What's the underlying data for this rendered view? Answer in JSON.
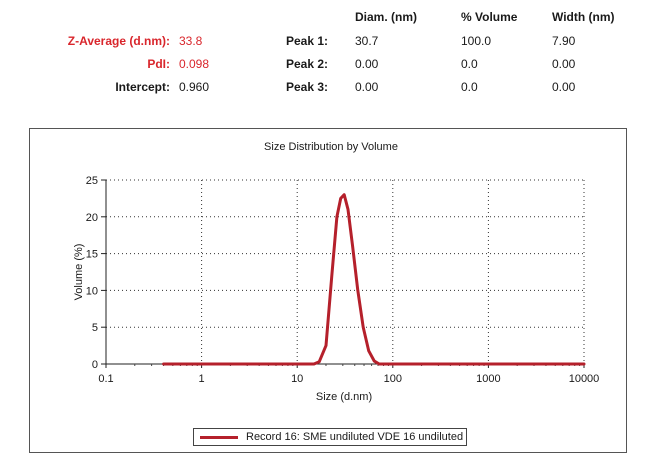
{
  "summary": {
    "z_average": {
      "label": "Z-Average (d.nm):",
      "value": "33.8"
    },
    "pdi": {
      "label": "PdI:",
      "value": "0.098"
    },
    "intercept": {
      "label": "Intercept:",
      "value": "0.960"
    }
  },
  "peaks_table": {
    "headers": [
      "Diam. (nm)",
      "% Volume",
      "Width (nm)"
    ],
    "rows": [
      {
        "label": "Peak 1:",
        "diam": "30.7",
        "volume": "100.0",
        "width": "7.90"
      },
      {
        "label": "Peak 2:",
        "diam": "0.00",
        "volume": "0.0",
        "width": "0.00"
      },
      {
        "label": "Peak 3:",
        "diam": "0.00",
        "volume": "0.0",
        "width": "0.00"
      }
    ]
  },
  "colors": {
    "accent_label": "#d9262c",
    "series": "#b5202b"
  },
  "chart_data": {
    "type": "line",
    "title": "Size Distribution by Volume",
    "xlabel": "Size (d.nm)",
    "ylabel": "Volume (%)",
    "x_scale": "log",
    "xlim": [
      0.1,
      10000
    ],
    "ylim": [
      0,
      25
    ],
    "x_ticks": [
      0.1,
      1,
      10,
      100,
      1000,
      10000
    ],
    "x_tick_labels": [
      "0.1",
      "1",
      "10",
      "100",
      "1000",
      "10000"
    ],
    "y_ticks": [
      0,
      5,
      10,
      15,
      20,
      25
    ],
    "y_tick_labels": [
      "0",
      "5",
      "10",
      "15",
      "20",
      "25"
    ],
    "grid": true,
    "legend_position": "bottom",
    "series": [
      {
        "name": "Record 16: SME undiluted VDE 16 undiluted",
        "x": [
          0.4,
          10,
          15,
          17,
          20,
          23,
          26,
          28.5,
          31,
          34,
          38,
          43,
          49,
          56,
          64,
          72,
          80,
          10000
        ],
        "y": [
          0,
          0,
          0,
          0.3,
          2.5,
          12,
          20,
          22.5,
          23,
          21,
          16,
          10,
          5,
          1.8,
          0.4,
          0,
          0,
          0
        ]
      }
    ]
  }
}
